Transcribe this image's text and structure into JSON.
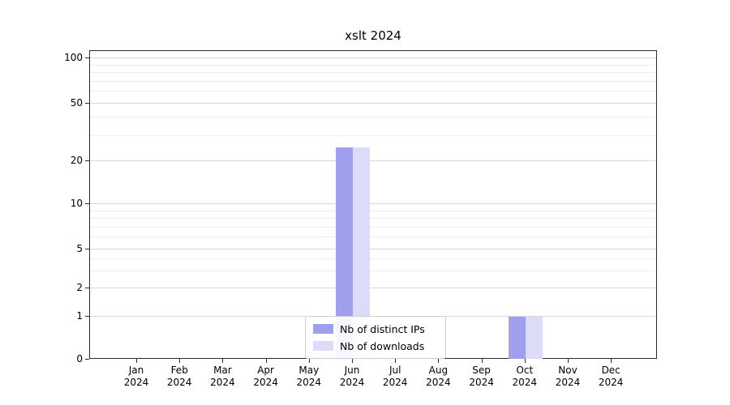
{
  "chart_data": {
    "type": "bar",
    "title": "xslt 2024",
    "categories": [
      "Jan",
      "Feb",
      "Mar",
      "Apr",
      "May",
      "Jun",
      "Jul",
      "Aug",
      "Sep",
      "Oct",
      "Nov",
      "Dec"
    ],
    "year_label": "2024",
    "series": [
      {
        "name": "Nb of distinct IPs",
        "color": "#9f9fee",
        "values": [
          0,
          0,
          0,
          0,
          0,
          25,
          0,
          0,
          0,
          1,
          0,
          0
        ]
      },
      {
        "name": "Nb of downloads",
        "color": "#dcdcf8",
        "values": [
          0,
          0,
          0,
          0,
          0,
          25,
          0,
          0,
          0,
          1,
          0,
          0
        ]
      }
    ],
    "yscale": "symlog",
    "yticks": [
      0,
      1,
      2,
      5,
      10,
      20,
      50,
      100
    ],
    "minor_yticks": [
      3,
      4,
      6,
      7,
      8,
      9,
      30,
      40,
      60,
      70,
      80,
      90
    ],
    "ylim": [
      0,
      115
    ],
    "grid": "horizontal",
    "legend_position": "lower center"
  }
}
